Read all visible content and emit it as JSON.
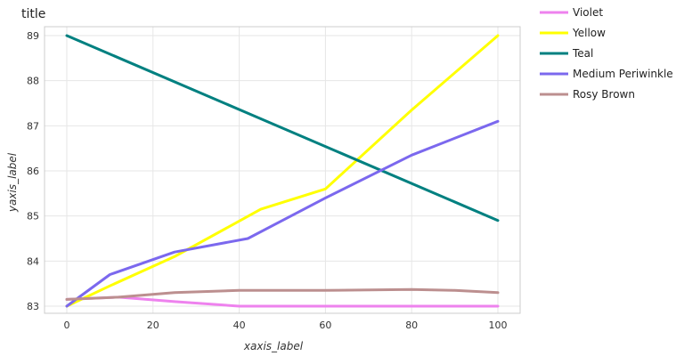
{
  "chart_data": {
    "type": "line",
    "title": "title",
    "xlabel": "xaxis_label",
    "ylabel": "yaxis_label",
    "xlim": [
      0,
      100
    ],
    "ylim": [
      83,
      89
    ],
    "x_ticks": [
      0,
      20,
      40,
      60,
      80,
      100
    ],
    "y_ticks": [
      83,
      84,
      85,
      86,
      87,
      88,
      89
    ],
    "grid": true,
    "legend_position": "right",
    "series": [
      {
        "name": "Violet",
        "color": "#ee82ee",
        "x": [
          0,
          12,
          25,
          40,
          60,
          80,
          100
        ],
        "values": [
          83.15,
          83.2,
          83.1,
          83.0,
          83.0,
          83.0,
          83.0
        ]
      },
      {
        "name": "Yellow",
        "color": "#ffff00",
        "x": [
          0,
          10,
          25,
          45,
          60,
          80,
          100
        ],
        "values": [
          83.0,
          83.45,
          84.1,
          85.15,
          85.6,
          87.35,
          89.0
        ]
      },
      {
        "name": "Teal",
        "color": "#008080",
        "x": [
          0,
          100
        ],
        "values": [
          89.0,
          84.9
        ]
      },
      {
        "name": "Medium Periwinkle",
        "color": "#7b68ee",
        "x": [
          0,
          10,
          25,
          42,
          60,
          80,
          100
        ],
        "values": [
          83.0,
          83.7,
          84.2,
          84.5,
          85.4,
          86.35,
          87.1
        ]
      },
      {
        "name": "Rosy Brown",
        "color": "#bc8f8f",
        "x": [
          0,
          12,
          25,
          40,
          60,
          80,
          90,
          100
        ],
        "values": [
          83.15,
          83.2,
          83.3,
          83.35,
          83.35,
          83.37,
          83.35,
          83.3
        ]
      }
    ]
  }
}
